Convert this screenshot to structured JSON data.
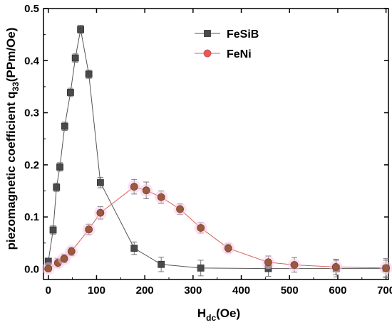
{
  "chart_data": {
    "type": "scatter",
    "title": "",
    "xlabel": {
      "main": "H",
      "sub": "dc",
      "rest": "(Oe)"
    },
    "ylabel": {
      "main": "piezomagnetic coefficient q",
      "sub": "33",
      "rest": "(PPm/Oe)"
    },
    "xlim": [
      -10,
      705
    ],
    "ylim": [
      -0.02,
      0.5
    ],
    "xticks": [
      0,
      100,
      200,
      300,
      400,
      500,
      600,
      700
    ],
    "yticks": [
      0.0,
      0.1,
      0.2,
      0.3,
      0.4,
      0.5
    ],
    "ytick_labels": [
      "0.0",
      "0.1",
      "0.2",
      "0.3",
      "0.4",
      "0.5"
    ],
    "legend_position": "top-right",
    "grid": false,
    "series": [
      {
        "name": "FeSiB",
        "color": "#555555",
        "marker": "square",
        "x": [
          0,
          10,
          17,
          24,
          34,
          46,
          56,
          67,
          84,
          108,
          178,
          234,
          316,
          456,
          597,
          700
        ],
        "y": [
          0.015,
          0.075,
          0.157,
          0.196,
          0.274,
          0.339,
          0.405,
          0.46,
          0.374,
          0.166,
          0.04,
          0.009,
          0.002,
          0.001,
          0.001,
          0.001
        ],
        "err": [
          0.006,
          0.008,
          0.008,
          0.008,
          0.008,
          0.008,
          0.008,
          0.008,
          0.008,
          0.01,
          0.012,
          0.014,
          0.015,
          0.015,
          0.016,
          0.016
        ]
      },
      {
        "name": "FeNi",
        "color": "#e05c5c",
        "marker": "circle",
        "x": [
          0,
          20,
          33,
          48,
          84,
          108,
          178,
          203,
          234,
          273,
          316,
          373,
          456,
          510,
          596,
          700
        ],
        "y": [
          0.001,
          0.012,
          0.02,
          0.034,
          0.076,
          0.108,
          0.158,
          0.151,
          0.138,
          0.115,
          0.079,
          0.04,
          0.013,
          0.008,
          0.004,
          0.002
        ],
        "err": [
          0.006,
          0.008,
          0.008,
          0.008,
          0.01,
          0.012,
          0.014,
          0.016,
          0.012,
          0.01,
          0.01,
          0.008,
          0.012,
          0.014,
          0.015,
          0.018
        ]
      }
    ]
  }
}
